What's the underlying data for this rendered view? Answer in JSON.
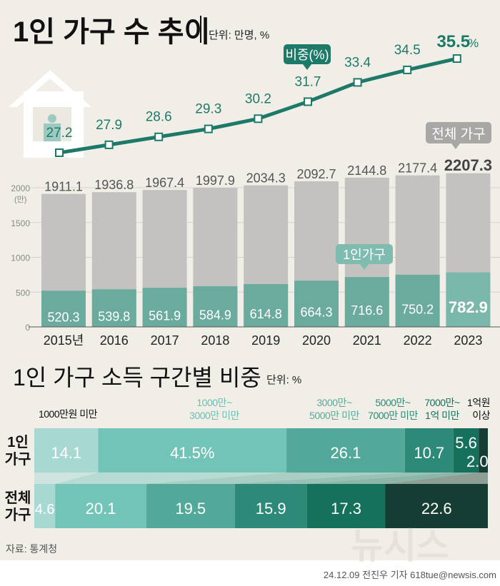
{
  "chart_data": [
    {
      "type": "bar+line",
      "title": "1인 가구 수 추이",
      "unit": "단위: 만명, %",
      "categories": [
        "2015년",
        "2016",
        "2017",
        "2018",
        "2019",
        "2020",
        "2021",
        "2022",
        "2023"
      ],
      "y_ticks": [
        "2000",
        "1500",
        "1000",
        "500",
        "0"
      ],
      "y_unit": "(만)",
      "ylim": [
        0,
        2000
      ],
      "series": [
        {
          "name": "전체 가구",
          "values": [
            1911.1,
            1936.8,
            1967.4,
            1997.9,
            2034.3,
            2092.7,
            2144.8,
            2177.4,
            2207.3
          ],
          "color": "#c4c2c0"
        },
        {
          "name": "1인가구",
          "values": [
            520.3,
            539.8,
            561.9,
            584.9,
            614.8,
            664.3,
            716.6,
            750.2,
            782.9
          ],
          "color": "#6aab9e"
        },
        {
          "name": "비중(%)",
          "values": [
            27.2,
            27.9,
            28.6,
            29.3,
            30.2,
            31.7,
            33.4,
            34.5,
            35.5
          ],
          "color": "#1e7a68"
        }
      ]
    },
    {
      "type": "stacked-bar",
      "title": "1인 가구 소득 구간별 비중",
      "unit": "단위: %",
      "categories": [
        "1000만원 미만",
        "1000만~ 3000만 미만",
        "3000만~ 5000만 미만",
        "5000만~ 7000만 미만",
        "7000만~ 1억 미만",
        "1억원 이상"
      ],
      "colors": [
        "#a7d8d2",
        "#72c3b8",
        "#52a99a",
        "#2e8a78",
        "#15705c",
        "#163d33"
      ],
      "series": [
        {
          "name": "1인 가구",
          "values": [
            14.1,
            41.5,
            26.1,
            10.7,
            5.6,
            2.0
          ]
        },
        {
          "name": "전체 가구",
          "values": [
            4.6,
            20.1,
            19.5,
            15.9,
            17.3,
            22.6
          ]
        }
      ]
    }
  ],
  "source": "자료: 통계청",
  "credit": "24.12.09 전진우 기자 618tue@newsis.com",
  "watermark": "뉴시스"
}
